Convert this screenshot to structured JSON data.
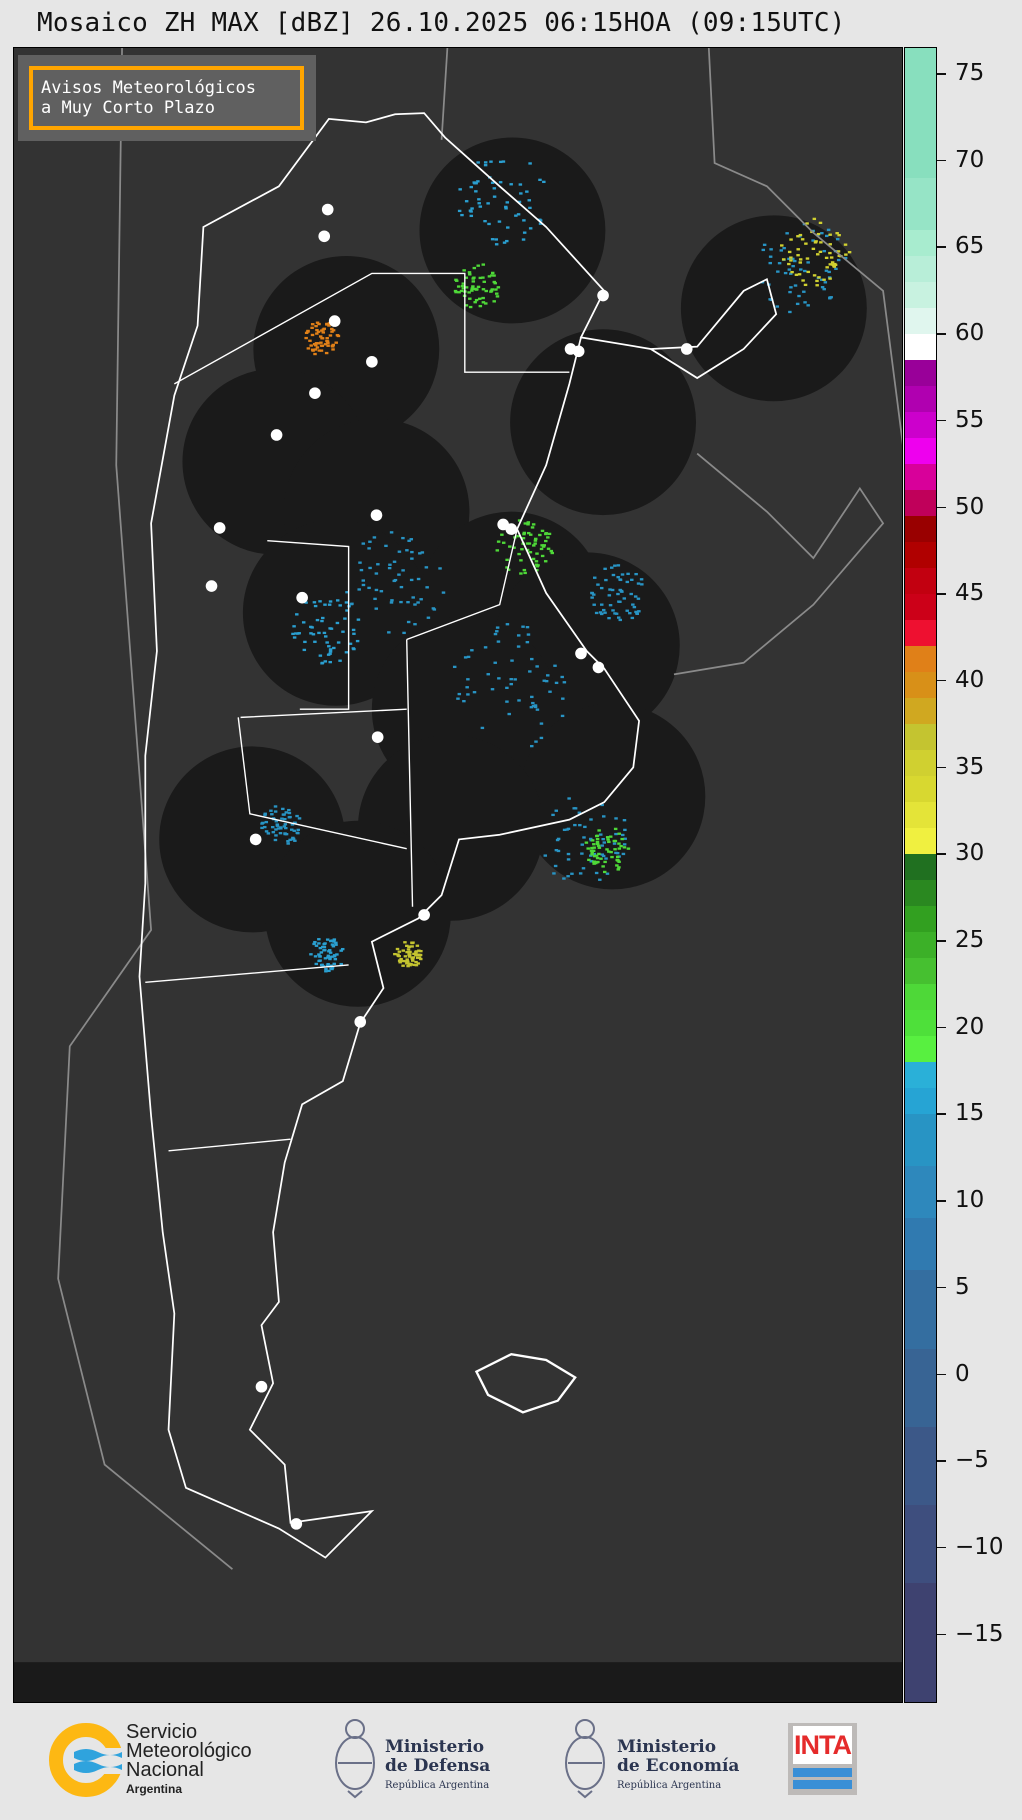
{
  "title": "Mosaico ZH MAX [dBZ] 26.10.2025 06:15HOA (09:15UTC)",
  "legend_box": {
    "line1": "Avisos Meteorológicos",
    "line2": "a Muy Corto Plazo",
    "border_color": "#ffa500"
  },
  "map": {
    "background_color": "#333333",
    "radar_coverage_color": "#1a1a1a",
    "boundary_color": "#ffffff",
    "neighbor_boundary_color": "#8a8a8a",
    "radar_site_icon": "white-dot"
  },
  "colorbar": {
    "units": "dBZ",
    "range": [
      -19,
      76.5
    ],
    "ticks": [
      "75",
      "70",
      "65",
      "60",
      "55",
      "50",
      "45",
      "40",
      "35",
      "30",
      "25",
      "20",
      "15",
      "10",
      "5",
      "0",
      "−5",
      "−10",
      "−15"
    ],
    "tick_values": [
      75,
      70,
      65,
      60,
      55,
      50,
      45,
      40,
      35,
      30,
      25,
      20,
      15,
      10,
      5,
      0,
      -5,
      -10,
      -15
    ],
    "bands": [
      [
        76.5,
        69,
        "#88dfbe"
      ],
      [
        69,
        66,
        "#96e4c6"
      ],
      [
        66,
        64.5,
        "#a8eccf"
      ],
      [
        64.5,
        63,
        "#b8eed8"
      ],
      [
        63,
        61.5,
        "#c8f2e0"
      ],
      [
        61.5,
        60,
        "#e0f6ee"
      ],
      [
        60,
        58.5,
        "#ffffff"
      ],
      [
        58.5,
        57,
        "#990099"
      ],
      [
        57,
        55.5,
        "#b000b0"
      ],
      [
        55.5,
        54,
        "#cc00cc"
      ],
      [
        54,
        52.5,
        "#ee00ee"
      ],
      [
        52.5,
        51,
        "#d8009a"
      ],
      [
        51,
        49.5,
        "#c0005a"
      ],
      [
        49.5,
        48,
        "#990000"
      ],
      [
        48,
        46.5,
        "#b00000"
      ],
      [
        46.5,
        45,
        "#c20010"
      ],
      [
        45,
        43.5,
        "#cc0018"
      ],
      [
        43.5,
        42,
        "#ee1030"
      ],
      [
        42,
        40.5,
        "#e08018"
      ],
      [
        40.5,
        39,
        "#d89018"
      ],
      [
        39,
        37.5,
        "#d0a820"
      ],
      [
        37.5,
        36,
        "#c4c430"
      ],
      [
        36,
        34.5,
        "#d0d030"
      ],
      [
        34.5,
        33,
        "#d8d830"
      ],
      [
        33,
        31.5,
        "#e4e438"
      ],
      [
        31.5,
        30,
        "#f0f040"
      ],
      [
        30,
        28.5,
        "#207020"
      ],
      [
        28.5,
        27,
        "#2a8820"
      ],
      [
        27,
        25.5,
        "#32a020"
      ],
      [
        25.5,
        24,
        "#3cb028"
      ],
      [
        24,
        22.5,
        "#46c030"
      ],
      [
        22.5,
        21,
        "#4ed838"
      ],
      [
        21,
        19.5,
        "#4ee03a"
      ],
      [
        19.5,
        18,
        "#58f040"
      ],
      [
        18,
        16.5,
        "#2ab0d8"
      ],
      [
        16.5,
        15,
        "#26a4d4"
      ],
      [
        15,
        12,
        "#2894c4"
      ],
      [
        12,
        9,
        "#2e88bc"
      ],
      [
        9,
        6,
        "#307ab0"
      ],
      [
        6,
        1.5,
        "#346ea0"
      ],
      [
        1.5,
        -3,
        "#386494"
      ],
      [
        -3,
        -7.5,
        "#3c5888"
      ],
      [
        -7.5,
        -12,
        "#3e4e7e"
      ],
      [
        -12,
        -19,
        "#3e4270"
      ]
    ]
  },
  "footer": {
    "smn": {
      "line1": "Servicio",
      "line2": "Meteorológico",
      "line3": "Nacional",
      "line4": "Argentina"
    },
    "defensa": {
      "line1": "Ministerio",
      "line2": "de Defensa",
      "line3": "República Argentina"
    },
    "economia": {
      "line1": "Ministerio",
      "line2": "de Economía",
      "line3": "República Argentina"
    },
    "inta": {
      "label": "INTA"
    }
  }
}
